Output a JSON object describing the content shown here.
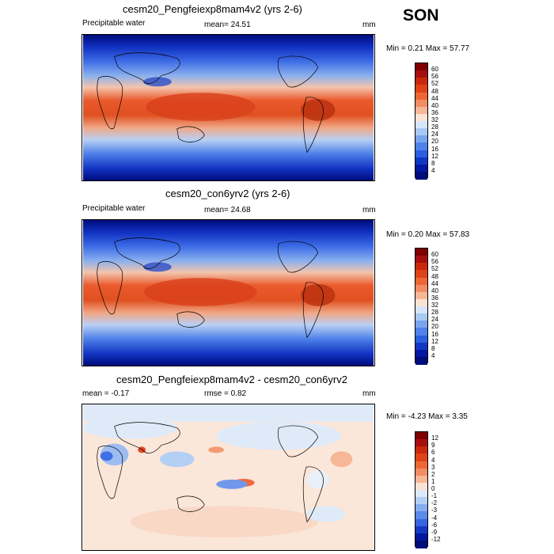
{
  "season": "SON",
  "panels": [
    {
      "title": "cesm20_Pengfeiexp8mam4v2 (yrs 2-6)",
      "left_label": "Precipitable water",
      "center_label": "mean=  24.51",
      "units": "mm",
      "minmax": "Min =   0.21 Max =  57.77",
      "type": "field",
      "levels": [
        "60",
        "56",
        "52",
        "48",
        "44",
        "40",
        "36",
        "32",
        "28",
        "24",
        "20",
        "16",
        "12",
        "8",
        "4"
      ],
      "colors": [
        "#7f0000",
        "#a50f0f",
        "#c8290c",
        "#de4416",
        "#ee6636",
        "#f28c62",
        "#f7b696",
        "#fbe3d4",
        "#d6e6f8",
        "#a9c8f2",
        "#7aa5ee",
        "#4f82ea",
        "#2a5fe0",
        "#1236c4",
        "#0318a0",
        "#000c7a"
      ]
    },
    {
      "title": "cesm20_con6yrv2 (yrs 2-6)",
      "left_label": "Precipitable water",
      "center_label": "mean=  24.68",
      "units": "mm",
      "minmax": "Min =   0.20 Max =  57.83",
      "type": "field",
      "levels": [
        "60",
        "56",
        "52",
        "48",
        "44",
        "40",
        "36",
        "32",
        "28",
        "24",
        "20",
        "16",
        "12",
        "8",
        "4"
      ],
      "colors": [
        "#7f0000",
        "#a50f0f",
        "#c8290c",
        "#de4416",
        "#ee6636",
        "#f28c62",
        "#f7b696",
        "#fbe3d4",
        "#d6e6f8",
        "#a9c8f2",
        "#7aa5ee",
        "#4f82ea",
        "#2a5fe0",
        "#1236c4",
        "#0318a0",
        "#000c7a"
      ]
    },
    {
      "title": "cesm20_Pengfeiexp8mam4v2 - cesm20_con6yrv2",
      "left_label": "mean =  -0.17",
      "center_label": "rmse =   0.82",
      "units": "mm",
      "minmax": "Min =  -4.23 Max =   3.35",
      "type": "diff",
      "levels": [
        "12",
        "9",
        "6",
        "4",
        "3",
        "2",
        "1",
        "0",
        "-1",
        "-2",
        "-3",
        "-4",
        "-6",
        "-9",
        "-12"
      ],
      "colors": [
        "#7f0000",
        "#a50f0f",
        "#c8290c",
        "#de4416",
        "#ee6636",
        "#f28c62",
        "#f7b696",
        "#fbe3d4",
        "#dce9f8",
        "#b4cff4",
        "#86adee",
        "#5a8bea",
        "#3566df",
        "#1538c2",
        "#03189e",
        "#000c78"
      ]
    }
  ]
}
